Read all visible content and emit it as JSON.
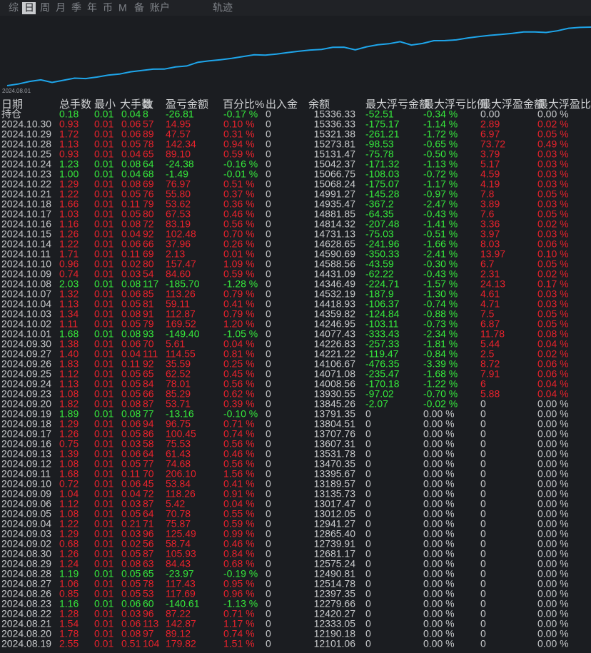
{
  "tabs": [
    "综",
    "日",
    "周",
    "月",
    "季",
    "年",
    "币",
    "M",
    "备",
    "账户",
    "轨迹"
  ],
  "chart": {
    "start_label": "2024.08.01"
  },
  "table": {
    "headers": [
      "日期",
      "总手数",
      "最小",
      "大手数",
      "数",
      "盈亏金额",
      "百分比%",
      "出入金",
      "余额",
      "最大浮亏金额",
      "最大浮亏比例",
      "最大浮盈金额",
      "最大浮盈比"
    ],
    "rows": [
      [
        "持仓",
        "0.18",
        "0.01",
        "0.04",
        "8",
        "-26.81",
        "-0.17 %",
        "0",
        "15336.33",
        "-52.51",
        "-0.34 %",
        "0.00",
        "0.00 %"
      ],
      [
        "2024.10.30",
        "0.93",
        "0.01",
        "0.06",
        "57",
        "14.95",
        "0.10 %",
        "0",
        "15336.33",
        "-175.17",
        "-1.14 %",
        "2.89",
        "0.02 %"
      ],
      [
        "2024.10.29",
        "1.72",
        "0.01",
        "0.06",
        "89",
        "47.57",
        "0.31 %",
        "0",
        "15321.38",
        "-261.21",
        "-1.72 %",
        "6.97",
        "0.05 %"
      ],
      [
        "2024.10.28",
        "1.13",
        "0.01",
        "0.05",
        "78",
        "142.34",
        "0.94 %",
        "0",
        "15273.81",
        "-98.53",
        "-0.65 %",
        "73.72",
        "0.49 %"
      ],
      [
        "2024.10.25",
        "0.93",
        "0.01",
        "0.04",
        "65",
        "89.10",
        "0.59 %",
        "0",
        "15131.47",
        "-75.78",
        "-0.50 %",
        "3.79",
        "0.03 %"
      ],
      [
        "2024.10.24",
        "1.23",
        "0.01",
        "0.08",
        "64",
        "-24.38",
        "-0.16 %",
        "0",
        "15042.37",
        "-171.32",
        "-1.13 %",
        "5.17",
        "0.03 %"
      ],
      [
        "2024.10.23",
        "1.00",
        "0.01",
        "0.04",
        "68",
        "-1.49",
        "-0.01 %",
        "0",
        "15066.75",
        "-108.03",
        "-0.72 %",
        "4.59",
        "0.03 %"
      ],
      [
        "2024.10.22",
        "1.29",
        "0.01",
        "0.08",
        "69",
        "76.97",
        "0.51 %",
        "0",
        "15068.24",
        "-175.07",
        "-1.17 %",
        "4.19",
        "0.03 %"
      ],
      [
        "2024.10.21",
        "1.22",
        "0.01",
        "0.05",
        "76",
        "55.80",
        "0.37 %",
        "0",
        "14991.27",
        "-145.28",
        "-0.97 %",
        "7.8",
        "0.05 %"
      ],
      [
        "2024.10.18",
        "1.66",
        "0.01",
        "0.11",
        "79",
        "53.62",
        "0.36 %",
        "0",
        "14935.47",
        "-367.2",
        "-2.47 %",
        "3.89",
        "0.03 %"
      ],
      [
        "2024.10.17",
        "1.03",
        "0.01",
        "0.05",
        "80",
        "67.53",
        "0.46 %",
        "0",
        "14881.85",
        "-64.35",
        "-0.43 %",
        "7.6",
        "0.05 %"
      ],
      [
        "2024.10.16",
        "1.16",
        "0.01",
        "0.08",
        "72",
        "83.19",
        "0.56 %",
        "0",
        "14814.32",
        "-207.48",
        "-1.41 %",
        "3.36",
        "0.02 %"
      ],
      [
        "2024.10.15",
        "1.26",
        "0.01",
        "0.04",
        "92",
        "102.48",
        "0.70 %",
        "0",
        "14731.13",
        "-75.03",
        "-0.51 %",
        "3.97",
        "0.03 %"
      ],
      [
        "2024.10.14",
        "1.22",
        "0.01",
        "0.06",
        "66",
        "37.96",
        "0.26 %",
        "0",
        "14628.65",
        "-241.96",
        "-1.66 %",
        "8.03",
        "0.06 %"
      ],
      [
        "2024.10.11",
        "1.71",
        "0.01",
        "0.11",
        "69",
        "2.13",
        "0.01 %",
        "0",
        "14590.69",
        "-350.33",
        "-2.41 %",
        "13.97",
        "0.10 %"
      ],
      [
        "2024.10.10",
        "0.96",
        "0.01",
        "0.02",
        "80",
        "157.47",
        "1.09 %",
        "0",
        "14588.56",
        "-43.59",
        "-0.30 %",
        "6.7",
        "0.05 %"
      ],
      [
        "2024.10.09",
        "0.74",
        "0.01",
        "0.03",
        "54",
        "84.60",
        "0.59 %",
        "0",
        "14431.09",
        "-62.22",
        "-0.43 %",
        "2.31",
        "0.02 %"
      ],
      [
        "2024.10.08",
        "2.03",
        "0.01",
        "0.08",
        "117",
        "-185.70",
        "-1.28 %",
        "0",
        "14346.49",
        "-224.71",
        "-1.57 %",
        "24.13",
        "0.17 %"
      ],
      [
        "2024.10.07",
        "1.32",
        "0.01",
        "0.06",
        "85",
        "113.26",
        "0.79 %",
        "0",
        "14532.19",
        "-187.9",
        "-1.30 %",
        "4.61",
        "0.03 %"
      ],
      [
        "2024.10.04",
        "1.13",
        "0.01",
        "0.05",
        "81",
        "59.11",
        "0.41 %",
        "0",
        "14418.93",
        "-106.37",
        "-0.74 %",
        "4.71",
        "0.03 %"
      ],
      [
        "2024.10.03",
        "1.34",
        "0.01",
        "0.08",
        "91",
        "112.87",
        "0.79 %",
        "0",
        "14359.82",
        "-124.84",
        "-0.88 %",
        "7.5",
        "0.05 %"
      ],
      [
        "2024.10.02",
        "1.11",
        "0.01",
        "0.05",
        "79",
        "169.52",
        "1.20 %",
        "0",
        "14246.95",
        "-103.11",
        "-0.73 %",
        "6.87",
        "0.05 %"
      ],
      [
        "2024.10.01",
        "1.68",
        "0.01",
        "0.08",
        "93",
        "-149.40",
        "-1.05 %",
        "0",
        "14077.43",
        "-333.43",
        "-2.34 %",
        "11.78",
        "0.08 %"
      ],
      [
        "2024.09.30",
        "1.38",
        "0.01",
        "0.06",
        "70",
        "5.61",
        "0.04 %",
        "0",
        "14226.83",
        "-257.33",
        "-1.81 %",
        "5.44",
        "0.04 %"
      ],
      [
        "2024.09.27",
        "1.40",
        "0.01",
        "0.04",
        "111",
        "114.55",
        "0.81 %",
        "0",
        "14221.22",
        "-119.47",
        "-0.84 %",
        "2.5",
        "0.02 %"
      ],
      [
        "2024.09.26",
        "1.83",
        "0.01",
        "0.11",
        "92",
        "35.59",
        "0.25 %",
        "0",
        "14106.67",
        "-476.35",
        "-3.39 %",
        "8.72",
        "0.06 %"
      ],
      [
        "2024.09.25",
        "1.12",
        "0.01",
        "0.05",
        "65",
        "62.52",
        "0.45 %",
        "0",
        "14071.08",
        "-235.47",
        "-1.68 %",
        "7.91",
        "0.06 %"
      ],
      [
        "2024.09.24",
        "1.13",
        "0.01",
        "0.05",
        "84",
        "78.01",
        "0.56 %",
        "0",
        "14008.56",
        "-170.18",
        "-1.22 %",
        "6",
        "0.04 %"
      ],
      [
        "2024.09.23",
        "1.08",
        "0.01",
        "0.05",
        "66",
        "85.29",
        "0.62 %",
        "0",
        "13930.55",
        "-97.02",
        "-0.70 %",
        "5.88",
        "0.04 %"
      ],
      [
        "2024.09.20",
        "1.82",
        "0.01",
        "0.08",
        "87",
        "53.71",
        "0.39 %",
        "0",
        "13845.26",
        "-2.07",
        "-0.02 %",
        "0",
        "0.00 %"
      ],
      [
        "2024.09.19",
        "1.89",
        "0.01",
        "0.08",
        "77",
        "-13.16",
        "-0.10 %",
        "0",
        "13791.35",
        "0",
        "0.00 %",
        "0",
        "0.00 %"
      ],
      [
        "2024.09.18",
        "1.29",
        "0.01",
        "0.06",
        "94",
        "96.75",
        "0.71 %",
        "0",
        "13804.51",
        "0",
        "0.00 %",
        "0",
        "0.00 %"
      ],
      [
        "2024.09.17",
        "1.26",
        "0.01",
        "0.05",
        "86",
        "100.45",
        "0.74 %",
        "0",
        "13707.76",
        "0",
        "0.00 %",
        "0",
        "0.00 %"
      ],
      [
        "2024.09.16",
        "0.75",
        "0.01",
        "0.03",
        "58",
        "75.53",
        "0.56 %",
        "0",
        "13607.31",
        "0",
        "0.00 %",
        "0",
        "0.00 %"
      ],
      [
        "2024.09.13",
        "1.39",
        "0.01",
        "0.06",
        "64",
        "61.43",
        "0.46 %",
        "0",
        "13531.78",
        "0",
        "0.00 %",
        "0",
        "0.00 %"
      ],
      [
        "2024.09.12",
        "1.08",
        "0.01",
        "0.05",
        "77",
        "74.68",
        "0.56 %",
        "0",
        "13470.35",
        "0",
        "0.00 %",
        "0",
        "0.00 %"
      ],
      [
        "2024.09.11",
        "1.68",
        "0.01",
        "0.11",
        "70",
        "206.10",
        "1.56 %",
        "0",
        "13395.67",
        "0",
        "0.00 %",
        "0",
        "0.00 %"
      ],
      [
        "2024.09.10",
        "0.72",
        "0.01",
        "0.06",
        "45",
        "53.84",
        "0.41 %",
        "0",
        "13189.57",
        "0",
        "0.00 %",
        "0",
        "0.00 %"
      ],
      [
        "2024.09.09",
        "1.04",
        "0.01",
        "0.04",
        "72",
        "118.26",
        "0.91 %",
        "0",
        "13135.73",
        "0",
        "0.00 %",
        "0",
        "0.00 %"
      ],
      [
        "2024.09.06",
        "1.12",
        "0.01",
        "0.03",
        "87",
        "5.42",
        "0.04 %",
        "0",
        "13017.47",
        "0",
        "0.00 %",
        "0",
        "0.00 %"
      ],
      [
        "2024.09.05",
        "1.08",
        "0.01",
        "0.05",
        "64",
        "70.78",
        "0.55 %",
        "0",
        "13012.05",
        "0",
        "0.00 %",
        "0",
        "0.00 %"
      ],
      [
        "2024.09.04",
        "1.22",
        "0.01",
        "0.21",
        "71",
        "75.87",
        "0.59 %",
        "0",
        "12941.27",
        "0",
        "0.00 %",
        "0",
        "0.00 %"
      ],
      [
        "2024.09.03",
        "1.29",
        "0.01",
        "0.03",
        "96",
        "125.49",
        "0.99 %",
        "0",
        "12865.40",
        "0",
        "0.00 %",
        "0",
        "0.00 %"
      ],
      [
        "2024.09.02",
        "0.68",
        "0.01",
        "0.02",
        "56",
        "58.74",
        "0.46 %",
        "0",
        "12739.91",
        "0",
        "0.00 %",
        "0",
        "0.00 %"
      ],
      [
        "2024.08.30",
        "1.26",
        "0.01",
        "0.05",
        "87",
        "105.93",
        "0.84 %",
        "0",
        "12681.17",
        "0",
        "0.00 %",
        "0",
        "0.00 %"
      ],
      [
        "2024.08.29",
        "1.24",
        "0.01",
        "0.08",
        "63",
        "84.43",
        "0.68 %",
        "0",
        "12575.24",
        "0",
        "0.00 %",
        "0",
        "0.00 %"
      ],
      [
        "2024.08.28",
        "1.19",
        "0.01",
        "0.05",
        "65",
        "-23.97",
        "-0.19 %",
        "0",
        "12490.81",
        "0",
        "0.00 %",
        "0",
        "0.00 %"
      ],
      [
        "2024.08.27",
        "1.06",
        "0.01",
        "0.05",
        "78",
        "117.43",
        "0.95 %",
        "0",
        "12514.78",
        "0",
        "0.00 %",
        "0",
        "0.00 %"
      ],
      [
        "2024.08.26",
        "0.85",
        "0.01",
        "0.05",
        "53",
        "117.69",
        "0.96 %",
        "0",
        "12397.35",
        "0",
        "0.00 %",
        "0",
        "0.00 %"
      ],
      [
        "2024.08.23",
        "1.16",
        "0.01",
        "0.06",
        "60",
        "-140.61",
        "-1.13 %",
        "0",
        "12279.66",
        "0",
        "0.00 %",
        "0",
        "0.00 %"
      ],
      [
        "2024.08.22",
        "1.28",
        "0.01",
        "0.03",
        "96",
        "87.22",
        "0.71 %",
        "0",
        "12420.27",
        "0",
        "0.00 %",
        "0",
        "0.00 %"
      ],
      [
        "2024.08.21",
        "1.54",
        "0.01",
        "0.06",
        "113",
        "142.87",
        "1.17 %",
        "0",
        "12333.05",
        "0",
        "0.00 %",
        "0",
        "0.00 %"
      ],
      [
        "2024.08.20",
        "1.78",
        "0.01",
        "0.08",
        "97",
        "89.12",
        "0.74 %",
        "0",
        "12190.18",
        "0",
        "0.00 %",
        "0",
        "0.00 %"
      ],
      [
        "2024.08.19",
        "2.55",
        "0.01",
        "0.51",
        "104",
        "179.82",
        "1.51 %",
        "0",
        "12101.06",
        "0",
        "0.00 %",
        "0",
        "0.00 %"
      ]
    ]
  }
}
